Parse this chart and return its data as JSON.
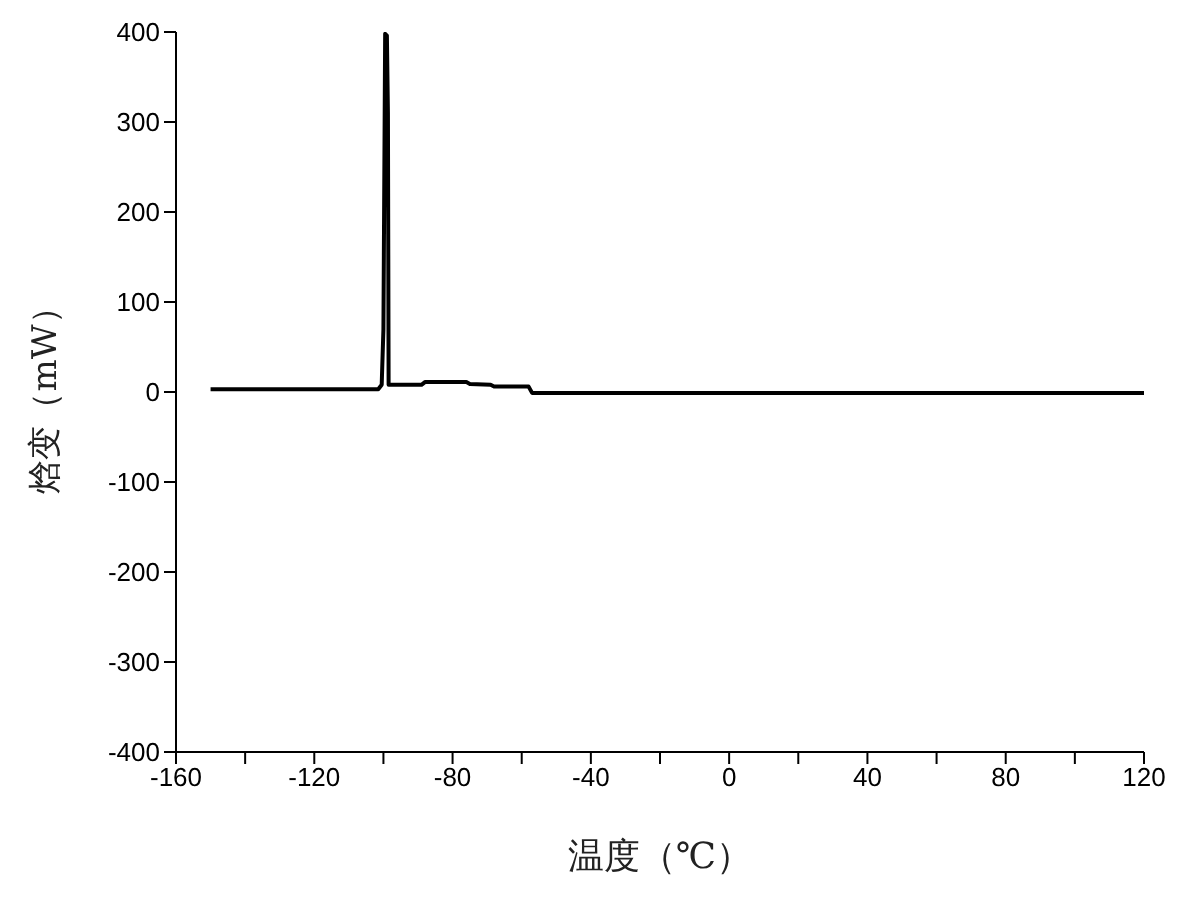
{
  "chart_data": {
    "type": "line",
    "xlabel": "温度（℃）",
    "ylabel": "焓变（mW）",
    "x": [
      -150,
      -101.5,
      -100.5,
      -100,
      -99.5,
      -99,
      -98.7,
      -98.5,
      -89,
      -88,
      -76,
      -75,
      -69,
      -68,
      -58,
      -57,
      120
    ],
    "series": [
      {
        "color": "#000000",
        "values": [
          3,
          3,
          8,
          70,
          398,
          396,
          310,
          8,
          8,
          11,
          11,
          9,
          8,
          6,
          6,
          -1,
          -1
        ]
      }
    ],
    "xlim": [
      -160,
      120
    ],
    "xticks": [
      -160,
      {
        "value": -140,
        "label": null
      },
      -120,
      {
        "value": -100,
        "label": null
      },
      -80,
      {
        "value": -60,
        "label": null
      },
      -40,
      {
        "value": -20,
        "label": null
      },
      0,
      {
        "value": 20,
        "label": null
      },
      40,
      {
        "value": 60,
        "label": null
      },
      80,
      {
        "value": 100,
        "label": null
      },
      120
    ],
    "ylim": [
      -400,
      400
    ],
    "yticks": [
      -400,
      -300,
      -200,
      -100,
      0,
      100,
      200,
      300,
      400
    ],
    "grid": false,
    "marker": "none",
    "line_style": "solid"
  }
}
